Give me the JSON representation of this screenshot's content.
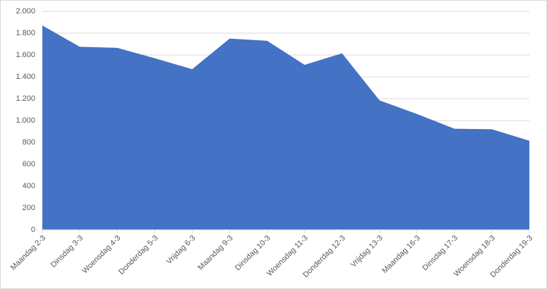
{
  "chart_data": {
    "type": "area",
    "categories": [
      "Maandag 2-3",
      "Dinsdag 3-3",
      "Woensdag 4-3",
      "Donderdag 5-3",
      "Vrijdag 6-3",
      "Maandag 9-3",
      "Dinsdag 10-3",
      "Woensdag 11-3",
      "Donderdag 12-3",
      "Vrijdag 13-3",
      "Maandag 16-3",
      "Dinsdag 17-3",
      "Woensdag 18-3",
      "Donderdag 19-3"
    ],
    "values": [
      1870,
      1675,
      1665,
      1570,
      1470,
      1750,
      1730,
      1510,
      1615,
      1185,
      1060,
      925,
      920,
      815
    ],
    "color": "#4472c4",
    "ylim": [
      0,
      2000
    ],
    "yticks": [
      0,
      200,
      400,
      600,
      800,
      {
        "value": 1000,
        "label": "1.000"
      },
      {
        "value": 1200,
        "label": "1.200"
      },
      {
        "value": 1400,
        "label": "1.400"
      },
      {
        "value": 1600,
        "label": "1.600"
      },
      {
        "value": 1800,
        "label": "1.800"
      },
      {
        "value": 2000,
        "label": "2.000"
      }
    ],
    "grid": true
  }
}
